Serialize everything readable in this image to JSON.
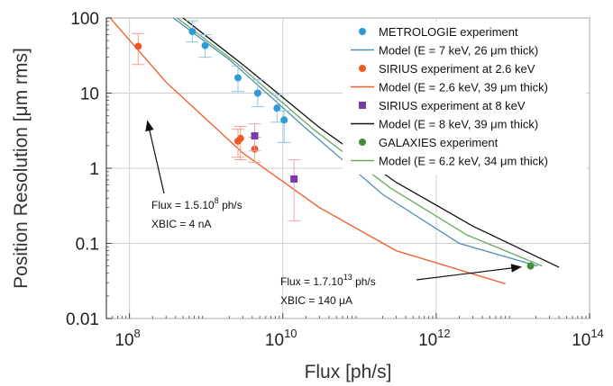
{
  "chart_data": {
    "type": "scatter",
    "x_scale": "log",
    "y_scale": "log",
    "xlabel": "Flux [ph/s]",
    "ylabel": "Position Resolution [μm rms]",
    "xlim": [
      50000000.0,
      100000000000000.0
    ],
    "ylim": [
      0.01,
      100
    ],
    "x_ticks": [
      {
        "value": 100000000.0,
        "base": "10",
        "exp": "8"
      },
      {
        "value": 10000000000.0,
        "base": "10",
        "exp": "10"
      },
      {
        "value": 1000000000000.0,
        "base": "10",
        "exp": "12"
      },
      {
        "value": 100000000000000.0,
        "base": "10",
        "exp": "14"
      }
    ],
    "y_ticks": [
      {
        "value": 100,
        "label": "100"
      },
      {
        "value": 10,
        "label": "10"
      },
      {
        "value": 1,
        "label": "1"
      },
      {
        "value": 0.1,
        "label": "0.1"
      },
      {
        "value": 0.01,
        "label": "0.01"
      }
    ],
    "grid": true,
    "legend_position": "top-right",
    "series": [
      {
        "name": "METROLOGIE experiment",
        "kind": "points",
        "marker": "circle",
        "color": "#2e9bd6",
        "points": [
          {
            "x": 660000000.0,
            "y": 66,
            "ylow": 48,
            "yhigh": 92
          },
          {
            "x": 970000000.0,
            "y": 43,
            "ylow": 30,
            "yhigh": 60
          },
          {
            "x": 2600000000.0,
            "y": 16,
            "ylow": 10.5,
            "yhigh": 23
          },
          {
            "x": 4700000000.0,
            "y": 10,
            "ylow": 6.6,
            "yhigh": 15
          },
          {
            "x": 8400000000.0,
            "y": 6.3,
            "ylow": 4.1,
            "yhigh": 9.5
          },
          {
            "x": 10400000000.0,
            "y": 4.4,
            "ylow": 2.2,
            "yhigh": 5.8
          }
        ]
      },
      {
        "name": "Model (E = 7 keV, 26 μm thick)",
        "kind": "line",
        "color": "#4a8fb5",
        "points": [
          {
            "x": 220000000.0,
            "y": 150
          },
          {
            "x": 2000000000.0,
            "y": 28
          },
          {
            "x": 20000000000.0,
            "y": 3.4
          },
          {
            "x": 200000000000.0,
            "y": 0.45
          },
          {
            "x": 2000000000000.0,
            "y": 0.1
          },
          {
            "x": 21000000000000.0,
            "y": 0.05
          }
        ]
      },
      {
        "name": "SIRIUS experiment at 2.6 keV",
        "kind": "points",
        "marker": "circle",
        "color": "#ef5a24",
        "points": [
          {
            "x": 130000000.0,
            "y": 42,
            "ylow": 24,
            "yhigh": 62
          },
          {
            "x": 2800000000.0,
            "y": 2.5,
            "ylow": 1.3,
            "yhigh": 3.6
          },
          {
            "x": 2600000000.0,
            "y": 2.3,
            "ylow": 1.4,
            "yhigh": 3.3
          },
          {
            "x": 4300000000.0,
            "y": 1.8,
            "ylow": 1.2,
            "yhigh": 2.6
          }
        ]
      },
      {
        "name": "Model (E = 2.6 keV, 39 μm thick)",
        "kind": "line",
        "color": "#ef5a24",
        "points": [
          {
            "x": 56000000.0,
            "y": 100
          },
          {
            "x": 300000000.0,
            "y": 14
          },
          {
            "x": 3000000000.0,
            "y": 1.6
          },
          {
            "x": 30000000000.0,
            "y": 0.3
          },
          {
            "x": 300000000000.0,
            "y": 0.08
          },
          {
            "x": 8000000000000.0,
            "y": 0.029
          }
        ]
      },
      {
        "name": "SIRIUS experiment at 8 keV",
        "kind": "points",
        "marker": "square",
        "color": "#7a3aa8",
        "points": [
          {
            "x": 4300000000.0,
            "y": 2.7,
            "ylow": 1.7,
            "yhigh": 3.9
          },
          {
            "x": 14000000000.0,
            "y": 0.72,
            "ylow": 0.2,
            "yhigh": 1.3
          }
        ]
      },
      {
        "name": "Model (E = 8 keV, 39 μm thick)",
        "kind": "line",
        "color": "#111111",
        "points": [
          {
            "x": 300000000.0,
            "y": 150
          },
          {
            "x": 3000000000.0,
            "y": 24
          },
          {
            "x": 30000000000.0,
            "y": 3.5
          },
          {
            "x": 300000000000.0,
            "y": 0.65
          },
          {
            "x": 3000000000000.0,
            "y": 0.17
          },
          {
            "x": 40000000000000.0,
            "y": 0.048
          }
        ]
      },
      {
        "name": "GALAXIES experiment",
        "kind": "points",
        "marker": "circle",
        "color": "#3f8f3a",
        "points": [
          {
            "x": 17000000000000.0,
            "y": 0.05
          }
        ]
      },
      {
        "name": "Model (E = 6.2 keV, 34 μm thick)",
        "kind": "line",
        "color": "#6aa95c",
        "points": [
          {
            "x": 250000000.0,
            "y": 150
          },
          {
            "x": 2500000000.0,
            "y": 25
          },
          {
            "x": 25000000000.0,
            "y": 3.3
          },
          {
            "x": 250000000000.0,
            "y": 0.55
          },
          {
            "x": 2500000000000.0,
            "y": 0.13
          },
          {
            "x": 24000000000000.0,
            "y": 0.05
          }
        ]
      }
    ],
    "annotations": [
      {
        "lines": [
          "Flux = 1.5.10",
          "8",
          " ph/s",
          "XBIC = 4 nA"
        ],
        "line1_prefix": "Flux = 1.5.10",
        "line1_sup": "8",
        "line1_suffix": " ph/s",
        "line2": "XBIC = 4 nA",
        "arrow_target": {
          "x": 150000000.0,
          "y": 5
        }
      },
      {
        "line1_prefix": "Flux = 1.7.10",
        "line1_sup": "13",
        "line1_suffix": " ph/s",
        "line2": "XBIC = 140 μA",
        "arrow_target": {
          "x": 15000000000000.0,
          "y": 0.05
        }
      }
    ]
  }
}
